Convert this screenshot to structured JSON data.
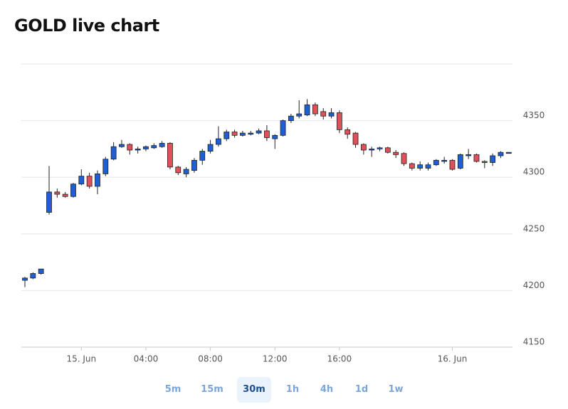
{
  "chart_data": {
    "type": "candlestick",
    "title": "GOLD live chart",
    "categories": [
      null,
      null,
      null,
      null,
      null,
      null,
      null,
      "15. Jun",
      null,
      null,
      null,
      null,
      null,
      null,
      null,
      "04:00",
      null,
      null,
      null,
      null,
      null,
      null,
      null,
      "08:00",
      null,
      null,
      null,
      null,
      null,
      null,
      null,
      "12:00",
      null,
      null,
      null,
      null,
      null,
      null,
      null,
      "16:00",
      null,
      null,
      null,
      null,
      null,
      null,
      null,
      null,
      null,
      null,
      null,
      null,
      null,
      "16. Jun",
      null,
      null,
      null,
      null,
      null,
      null,
      null
    ],
    "open": [
      4209,
      4211,
      4215,
      4269,
      4287,
      4285,
      4283,
      4294,
      4301,
      4292,
      4303,
      4316,
      4327,
      4329,
      4324,
      4325,
      4326,
      4327,
      4330,
      4309,
      4303,
      4306,
      4315,
      4323,
      4329,
      4334,
      4340,
      4337,
      4338,
      4339,
      4341,
      4334,
      4337,
      4350,
      4354,
      4355,
      4364,
      4358,
      4354,
      4357,
      4342,
      4339,
      4329,
      4324,
      4325,
      4326,
      4322,
      4321,
      4312,
      4308,
      4308,
      4311,
      4314,
      4315,
      4308,
      4319,
      4320,
      4314,
      4313,
      4319,
      4322
    ],
    "high": [
      4212,
      4216,
      4219,
      4310,
      4290,
      4287,
      4295,
      4307,
      4304,
      4306,
      4318,
      4331,
      4333,
      4330,
      4327,
      4328,
      4330,
      4332,
      4331,
      4310,
      4309,
      4317,
      4325,
      4333,
      4345,
      4342,
      4342,
      4341,
      4341,
      4343,
      4346,
      4338,
      4351,
      4356,
      4368,
      4369,
      4366,
      4361,
      4361,
      4359,
      4344,
      4340,
      4330,
      4327,
      4327,
      4327,
      4324,
      4322,
      4313,
      4314,
      4313,
      4316,
      4318,
      4316,
      4321,
      4325,
      4321,
      4315,
      4321,
      4323,
      4322
    ],
    "low": [
      4203,
      4210,
      4214,
      4267,
      4282,
      4282,
      4282,
      4293,
      4290,
      4285,
      4301,
      4315,
      4326,
      4320,
      4321,
      4323,
      4325,
      4326,
      4307,
      4302,
      4300,
      4304,
      4311,
      4321,
      4327,
      4332,
      4335,
      4336,
      4337,
      4338,
      4332,
      4325,
      4336,
      4348,
      4352,
      4354,
      4354,
      4351,
      4352,
      4339,
      4334,
      4326,
      4320,
      4318,
      4323,
      4321,
      4317,
      4310,
      4306,
      4306,
      4306,
      4310,
      4312,
      4306,
      4307,
      4316,
      4313,
      4308,
      4310,
      4317,
      4322
    ],
    "close": [
      4211,
      4215,
      4219,
      4287,
      4285,
      4283,
      4294,
      4301,
      4292,
      4303,
      4316,
      4327,
      4329,
      4324,
      4325,
      4327,
      4328,
      4330,
      4309,
      4304,
      4307,
      4315,
      4323,
      4329,
      4334,
      4340,
      4337,
      4339,
      4339,
      4341,
      4335,
      4337,
      4350,
      4354,
      4356,
      4364,
      4356,
      4354,
      4357,
      4342,
      4338,
      4329,
      4324,
      4325,
      4326,
      4322,
      4320,
      4312,
      4308,
      4311,
      4311,
      4315,
      4315,
      4307,
      4320,
      4320,
      4314,
      4313,
      4319,
      4322,
      4322
    ],
    "up_color": "#1f5fd6",
    "down_color": "#e0505a",
    "ylim": [
      4150,
      4400
    ],
    "yticks": [
      4150,
      4200,
      4250,
      4300,
      4350
    ],
    "grid": true
  },
  "timeframes": {
    "options": [
      "5m",
      "15m",
      "30m",
      "1h",
      "4h",
      "1d",
      "1w"
    ],
    "active": "30m"
  }
}
